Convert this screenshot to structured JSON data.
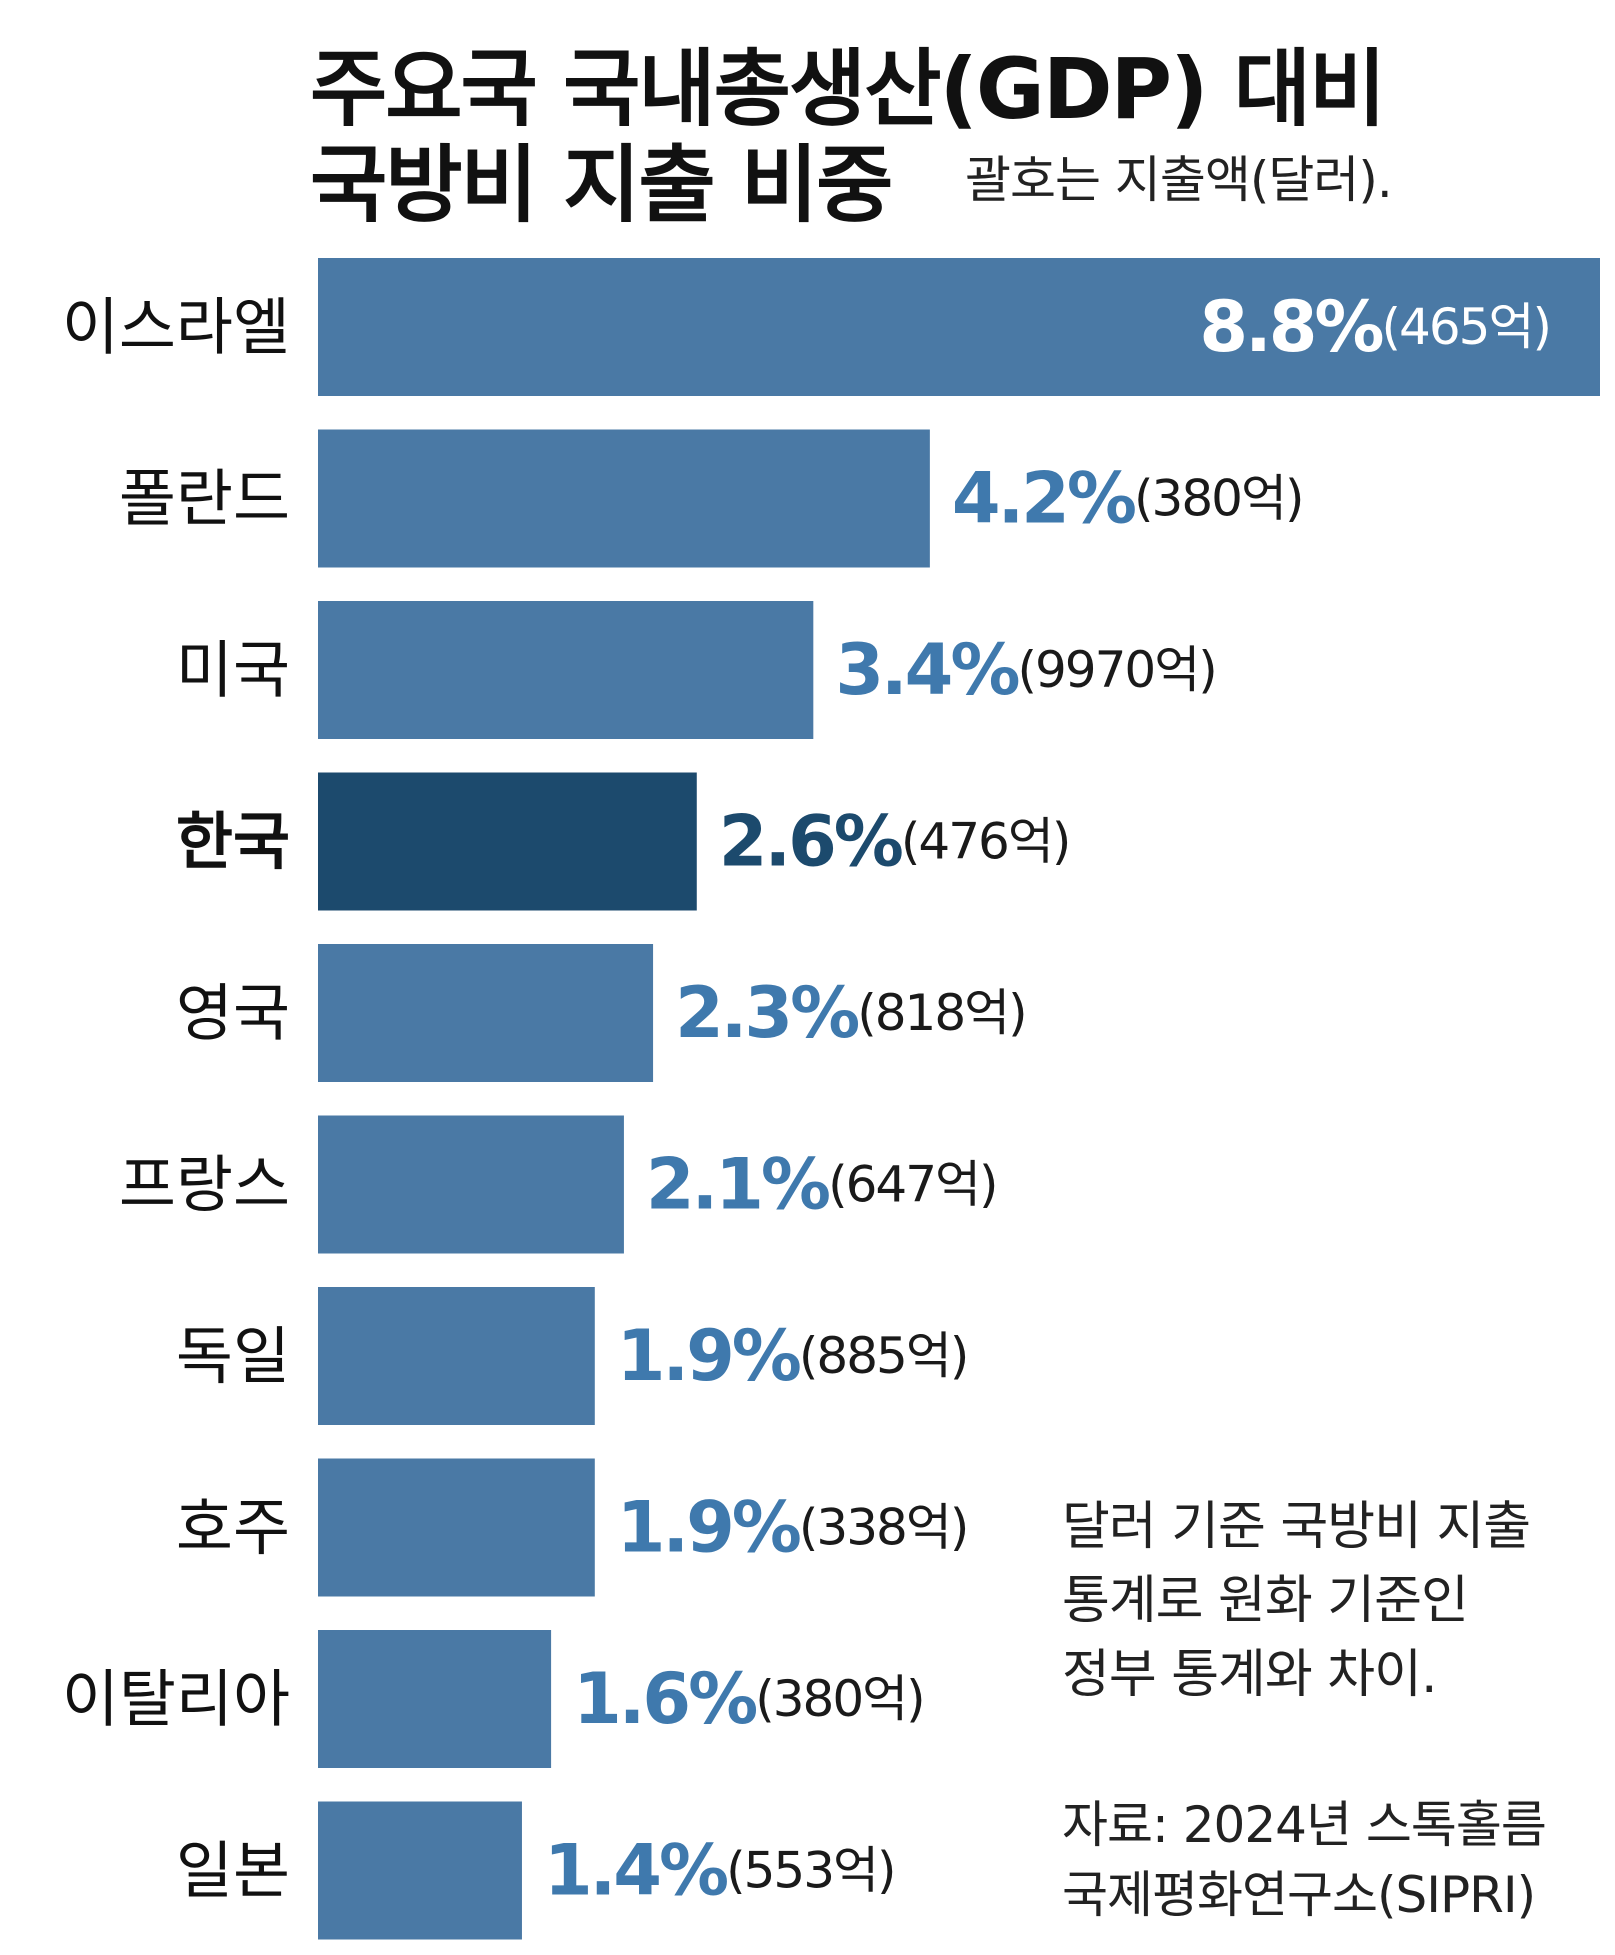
{
  "title": {
    "line1": "주요국 국내총생산(GDP) 대비",
    "line2": "국방비 지출 비중",
    "subtitle": "괄호는 지출액(달러)."
  },
  "note": {
    "lines": [
      "달러 기준 국방비 지출",
      "통계로 원화 기준인",
      "정부 통계와 차이."
    ]
  },
  "source": {
    "lines": [
      "자료: 2024년 스톡홀름",
      "국제평화연구소(SIPRI)"
    ]
  },
  "colors": {
    "bar": "#4a79a5",
    "bar_highlight": "#1c4a6d",
    "value_text": "#3f79ad",
    "value_highlight": "#1c4a6d",
    "value_on_bar": "#ffffff"
  },
  "chart_data": {
    "type": "bar",
    "orientation": "horizontal",
    "unit": "%",
    "categories": [
      "이스라엘",
      "폴란드",
      "미국",
      "한국",
      "영국",
      "프랑스",
      "독일",
      "호주",
      "이탈리아",
      "일본"
    ],
    "values": [
      8.8,
      4.2,
      3.4,
      2.6,
      2.3,
      2.1,
      1.9,
      1.9,
      1.6,
      1.4
    ],
    "value_labels": [
      "8.8%",
      "4.2%",
      "3.4%",
      "2.6%",
      "2.3%",
      "2.1%",
      "1.9%",
      "1.9%",
      "1.6%",
      "1.4%"
    ],
    "spending_labels": [
      "(465억)",
      "(380억)",
      "(9970억)",
      "(476억)",
      "(818억)",
      "(647억)",
      "(885억)",
      "(338억)",
      "(380억)",
      "(553억)"
    ],
    "highlight": "한국",
    "xlim": [
      0,
      8.8
    ],
    "grid": false,
    "legend": "none"
  }
}
